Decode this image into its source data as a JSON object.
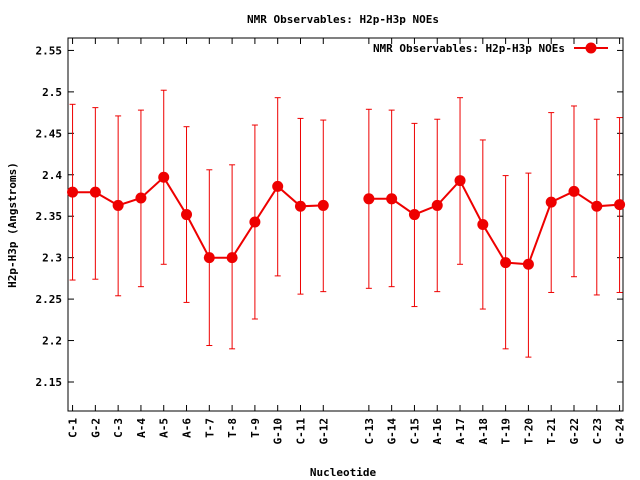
{
  "chart_data": {
    "type": "line",
    "title": "NMR Observables: H2p-H3p NOEs",
    "xlabel": "Nucleotide",
    "ylabel": "H2p-H3p (Angstroms)",
    "ylim": [
      2.115,
      2.565
    ],
    "yticks": [
      2.15,
      2.2,
      2.25,
      2.3,
      2.35,
      2.4,
      2.45,
      2.5,
      2.55
    ],
    "ytick_labels": [
      "2.15",
      "2.2",
      "2.25",
      "2.3",
      "2.35",
      "2.4",
      "2.45",
      "2.5",
      "2.55"
    ],
    "categories": [
      "C-1",
      "G-2",
      "C-3",
      "A-4",
      "A-5",
      "A-6",
      "T-7",
      "T-8",
      "T-9",
      "G-10",
      "C-11",
      "G-12",
      "C-13",
      "G-14",
      "C-15",
      "A-16",
      "A-17",
      "A-18",
      "T-19",
      "T-20",
      "T-21",
      "G-22",
      "C-23",
      "G-24"
    ],
    "x_positions": [
      1,
      2,
      3,
      4,
      5,
      6,
      7,
      8,
      9,
      10,
      11,
      12,
      14,
      15,
      16,
      17,
      18,
      19,
      20,
      21,
      22,
      23,
      24,
      25
    ],
    "legend": "top-right",
    "grid": false,
    "series": [
      {
        "name": "NMR Observables: H2p-H3p NOEs",
        "color": "#ee0000",
        "segments": [
          [
            0,
            11
          ],
          [
            12,
            23
          ]
        ],
        "values": [
          2.379,
          2.379,
          2.363,
          2.372,
          2.397,
          2.352,
          2.3,
          2.3,
          2.343,
          2.386,
          2.362,
          2.363,
          2.371,
          2.371,
          2.352,
          2.363,
          2.393,
          2.34,
          2.294,
          2.292,
          2.367,
          2.38,
          2.362,
          2.364
        ],
        "err_low": [
          2.273,
          2.274,
          2.254,
          2.265,
          2.292,
          2.246,
          2.194,
          2.19,
          2.226,
          2.278,
          2.256,
          2.259,
          2.263,
          2.265,
          2.241,
          2.259,
          2.292,
          2.238,
          2.19,
          2.18,
          2.258,
          2.277,
          2.255,
          2.258
        ],
        "err_high": [
          2.485,
          2.481,
          2.471,
          2.478,
          2.502,
          2.458,
          2.406,
          2.412,
          2.46,
          2.493,
          2.468,
          2.466,
          2.479,
          2.478,
          2.462,
          2.467,
          2.493,
          2.442,
          2.399,
          2.402,
          2.475,
          2.483,
          2.467,
          2.469
        ]
      }
    ]
  }
}
